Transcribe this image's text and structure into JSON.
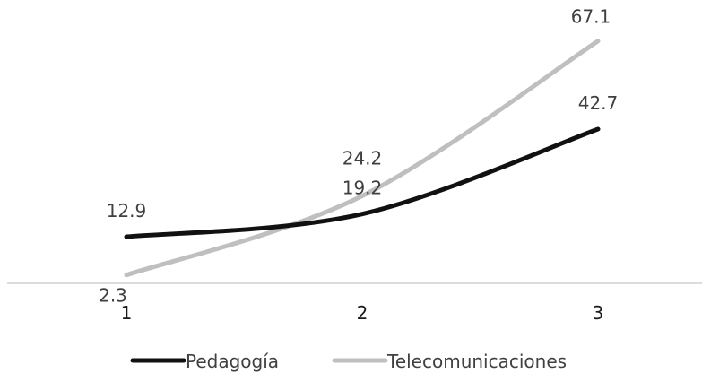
{
  "chart_data": {
    "type": "line",
    "categories": [
      "1",
      "2",
      "3"
    ],
    "series": [
      {
        "name": "Pedagogía",
        "values": [
          12.9,
          19.2,
          42.7
        ],
        "color": "#111111"
      },
      {
        "name": "Telecomunicaciones",
        "values": [
          2.3,
          24.2,
          67.1
        ],
        "color": "#bfbfbf"
      }
    ],
    "data_labels": [
      "12.9",
      "19.2",
      "42.7",
      "2.3",
      "24.2",
      "67.1"
    ],
    "smooth": true,
    "grid": false,
    "legend_position": "bottom",
    "title": "",
    "xlabel": "",
    "ylabel": ""
  }
}
